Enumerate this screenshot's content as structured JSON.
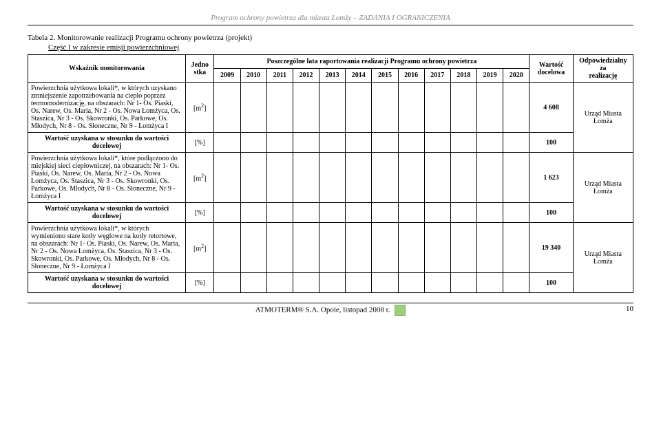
{
  "header": "Program ochrony powietrza dla miasta Łomży – ZADANIA I OGRANICZENIA",
  "caption": "Tabela 2. Monitorowanie realizacji Programu ochrony powietrza (projekt)",
  "subcaption": "Część I w zakresie emisji powierzchniowej",
  "columns": {
    "indicator": "Wskaźnik monitorowania",
    "unit_top": "Jedno",
    "unit_bot": "stka",
    "years_group": "Poszczególne lata raportowania realizacji Programu ochrony powietrza",
    "years": [
      "2009",
      "2010",
      "2011",
      "2012",
      "2013",
      "2014",
      "2015",
      "2016",
      "2017",
      "2018",
      "2019",
      "2020"
    ],
    "target_top": "Wartość",
    "target_bot": "docelowa",
    "resp_top": "Odpowiedzialny za",
    "resp_bot": "realizację"
  },
  "rows": [
    {
      "indicator": "Powierzchnia użytkowa lokali*, w których uzyskano zmniejszenie zapotrzebowania na ciepło poprzez termomodernizację, na obszarach: Nr 1- Os. Piaski, Os. Narew, Os. Maria, Nr 2 - Os. Nowa Łomżyca, Os. Staszica, Nr 3 - Os. Skowronki, Os. Parkowe, Os. Młodych, Nr 8 - Os. Słoneczne, Nr 9 - Łomżyca I",
      "unit": "[m²]",
      "target": "4 608",
      "resp": "Urząd Miasta Łomża",
      "bold_indicator": false
    },
    {
      "indicator": "Wartość uzyskana w stosunku do wartości docelowej",
      "unit": "[%]",
      "target": "100",
      "resp": "",
      "bold_indicator": true
    },
    {
      "indicator": "Powierzchnia użytkowa lokali*, które podłączono do miejskiej sieci ciepłowniczej, na obszarach: Nr 1- Os. Piaski, Os. Narew, Os. Maria, Nr 2 - Os. Nowa Łomżyca, Os. Staszica, Nr 3 - Os. Skowronki, Os. Parkowe, Os. Młodych, Nr 8 - Os. Słoneczne, Nr 9 - Łomżyca I",
      "unit": "[m²]",
      "target": "1 623",
      "resp": "Urząd Miasta Łomża",
      "bold_indicator": false
    },
    {
      "indicator": "Wartość uzyskana w stosunku do wartości docelowej",
      "unit": "[%]",
      "target": "100",
      "resp": "",
      "bold_indicator": true
    },
    {
      "indicator": "Powierzchnia użytkowa lokali*, w których wymieniono stare kotły węglowe na kotły retortowe, na obszarach: Nr 1- Os. Piaski, Os. Narew, Os. Maria, Nr 2 - Os. Nowa Łomżyca, Os. Staszica, Nr 3 - Os. Skowronki, Os. Parkowe, Os. Młodych, Nr 8 - Os. Słoneczne, Nr 9 - Łomżyca I",
      "unit": "[m²]",
      "target": "19 340",
      "resp": "Urząd Miasta Łomża",
      "bold_indicator": false
    },
    {
      "indicator": "Wartość uzyskana w stosunku do wartości docelowej",
      "unit": "[%]",
      "target": "100",
      "resp": "",
      "bold_indicator": true
    }
  ],
  "footer": {
    "text": "ATMOTERM® S.A. Opole, listopad 2008 r.",
    "page": "10"
  }
}
